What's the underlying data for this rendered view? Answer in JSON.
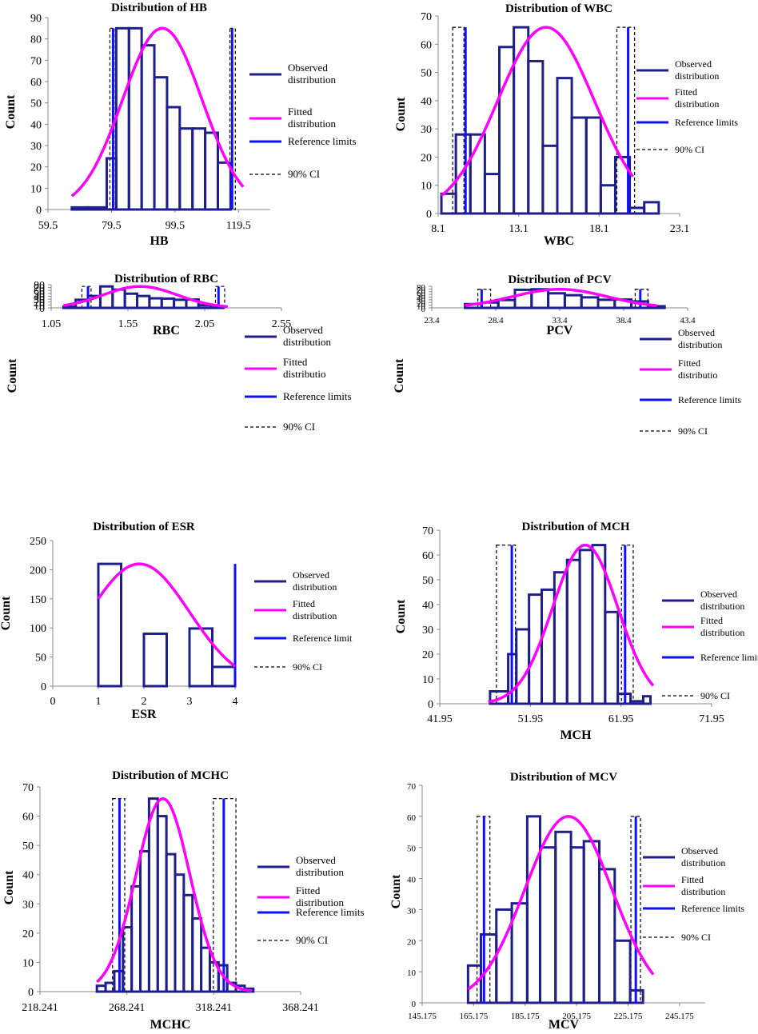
{
  "colors": {
    "observed": "#1f1f8c",
    "fitted": "#ff00ff",
    "reference": "#1010ff",
    "ci": "#000000"
  },
  "chart_data": [
    {
      "type": "bar",
      "title": "Distribution of HB",
      "xlabel": "HB",
      "ylabel": "Count",
      "xlim": [
        59.5,
        129.5
      ],
      "ylim": [
        0,
        90
      ],
      "xticks": [
        "59.5",
        "79.5",
        "99.5",
        "119.5"
      ],
      "xtick_values": [
        59.5,
        79.5,
        99.5,
        119.5
      ],
      "yticks": [
        "0",
        "10",
        "20",
        "30",
        "40",
        "50",
        "60",
        "70",
        "80",
        "90"
      ],
      "bins": [
        [
          67,
          72
        ],
        [
          72,
          78
        ],
        [
          78,
          81
        ],
        [
          81,
          85
        ],
        [
          85,
          89
        ],
        [
          89,
          93
        ],
        [
          93,
          97
        ],
        [
          97,
          101
        ],
        [
          101,
          105
        ],
        [
          105,
          109
        ],
        [
          109,
          113
        ],
        [
          113,
          117
        ],
        [
          117,
          121
        ]
      ],
      "counts": [
        1,
        1,
        24,
        85,
        85,
        77,
        62,
        48,
        38,
        38,
        36,
        22,
        0
      ],
      "fitted": {
        "mean": 95.5,
        "sd": 12.5,
        "peak": 85,
        "from": 67,
        "to": 121
      },
      "reference_limits": [
        80,
        117.5
      ],
      "ci_90": [
        [
          79,
          80.7
        ],
        [
          116.8,
          118.5
        ]
      ],
      "ci_height": 85,
      "legend": [
        "Observed distribution",
        "Fitted distribution",
        "Reference limits",
        "90% CI"
      ]
    },
    {
      "type": "bar",
      "title": "Distribution of WBC",
      "xlabel": "WBC",
      "ylabel": "Count",
      "xlim": [
        8.1,
        23.1
      ],
      "ylim": [
        0,
        70
      ],
      "xticks": [
        "8.1",
        "13.1",
        "18.1",
        "23.1"
      ],
      "xtick_values": [
        8.1,
        13.1,
        18.1,
        23.1
      ],
      "yticks": [
        "0",
        "10",
        "20",
        "30",
        "40",
        "50",
        "60",
        "70"
      ],
      "bins": [
        [
          8.3,
          9.2
        ],
        [
          9.2,
          10.1
        ],
        [
          10.1,
          11.0
        ],
        [
          11.0,
          11.9
        ],
        [
          11.9,
          12.8
        ],
        [
          12.8,
          13.7
        ],
        [
          13.7,
          14.6
        ],
        [
          14.6,
          15.5
        ],
        [
          15.5,
          16.4
        ],
        [
          16.4,
          17.3
        ],
        [
          17.3,
          18.2
        ],
        [
          18.2,
          19.1
        ],
        [
          19.1,
          20.0
        ],
        [
          20.0,
          20.9
        ],
        [
          20.9,
          21.8
        ]
      ],
      "counts": [
        7,
        28,
        28,
        14,
        59,
        66,
        54,
        24,
        48,
        34,
        34,
        10,
        20,
        2,
        4
      ],
      "fitted": {
        "mean": 14.8,
        "sd": 3.0,
        "peak": 66,
        "from": 8.3,
        "to": 20.2
      },
      "reference_limits": [
        9.8,
        19.9
      ],
      "ci_90": [
        [
          9.0,
          9.7
        ],
        [
          19.2,
          20.3
        ]
      ],
      "ci_height": 66,
      "legend": [
        "Observed distribution",
        "Fitted distribution",
        "Reference limits",
        "90% CI"
      ]
    },
    {
      "type": "bar",
      "title": "Distribution of RBC",
      "xlabel": "RBC",
      "ylabel": "Count",
      "xlim": [
        1.05,
        2.55
      ],
      "ylim": [
        0,
        80
      ],
      "xticks": [
        "1.05",
        "1.55",
        "2.05",
        "2.55"
      ],
      "xtick_values": [
        1.05,
        1.55,
        2.05,
        2.55
      ],
      "yticks": [
        "0",
        "10",
        "20",
        "30",
        "40",
        "50",
        "60",
        "70",
        "80"
      ],
      "bins": [
        [
          1.13,
          1.21
        ],
        [
          1.21,
          1.29
        ],
        [
          1.29,
          1.37
        ],
        [
          1.37,
          1.45
        ],
        [
          1.45,
          1.53
        ],
        [
          1.53,
          1.61
        ],
        [
          1.61,
          1.69
        ],
        [
          1.69,
          1.77
        ],
        [
          1.77,
          1.85
        ],
        [
          1.85,
          1.93
        ],
        [
          1.93,
          2.01
        ],
        [
          2.01,
          2.09
        ],
        [
          2.09,
          2.17
        ],
        [
          2.17,
          2.25
        ],
        [
          2.25,
          2.33
        ]
      ],
      "counts": [
        4,
        28,
        41,
        74,
        63,
        49,
        41,
        33,
        32,
        28,
        29,
        9,
        1,
        0,
        0
      ],
      "fitted": {
        "mean": 1.63,
        "sd": 0.24,
        "peak": 74,
        "from": 1.13,
        "to": 2.2
      },
      "reference_limits": [
        1.29,
        2.14
      ],
      "ci_90": [
        [
          1.25,
          1.31
        ],
        [
          2.12,
          2.18
        ]
      ],
      "ci_height": 74,
      "legend": [
        "Observed distribution",
        "Fitted distributio",
        "Reference limits",
        "90% CI"
      ]
    },
    {
      "type": "bar",
      "title": "Distribution of PCV",
      "xlabel": "PCV",
      "ylabel": "Count",
      "xlim": [
        23.4,
        43.4
      ],
      "ylim": [
        0,
        80
      ],
      "xticks": [
        "23.4",
        "28.4",
        "33.4",
        "38.4",
        "43.4"
      ],
      "xtick_values": [
        23.4,
        28.4,
        33.4,
        38.4,
        43.4
      ],
      "yticks": [
        "0",
        "10",
        "20",
        "30",
        "40",
        "50",
        "60",
        "70",
        "80"
      ],
      "bins": [
        [
          26.0,
          27.3
        ],
        [
          27.3,
          28.6
        ],
        [
          28.6,
          29.9
        ],
        [
          29.9,
          31.2
        ],
        [
          31.2,
          32.5
        ],
        [
          32.5,
          33.8
        ],
        [
          33.8,
          35.1
        ],
        [
          35.1,
          36.4
        ],
        [
          36.4,
          37.7
        ],
        [
          37.7,
          39.0
        ],
        [
          39.0,
          40.3
        ],
        [
          40.3,
          41.6
        ]
      ],
      "counts": [
        14,
        20,
        29,
        67,
        69,
        54,
        47,
        39,
        30,
        31,
        24,
        6
      ],
      "fitted": {
        "mean": 33.4,
        "sd": 3.7,
        "peak": 69,
        "from": 26.0,
        "to": 41.0
      },
      "reference_limits": [
        27.3,
        39.7
      ],
      "ci_90": [
        [
          27.0,
          28.0
        ],
        [
          39.3,
          40.3
        ]
      ],
      "ci_height": 69,
      "legend": [
        "Observed distribution",
        "Fitted distributio",
        "Reference limits",
        "90% CI"
      ]
    },
    {
      "type": "bar",
      "title": "Distribution of ESR",
      "xlabel": "ESR",
      "ylabel": "Count",
      "xlim": [
        0,
        4
      ],
      "ylim": [
        0,
        250
      ],
      "xticks": [
        "0",
        "1",
        "2",
        "3",
        "4"
      ],
      "xtick_values": [
        0,
        1,
        2,
        3,
        4
      ],
      "yticks": [
        "0",
        "50",
        "100",
        "150",
        "200",
        "250"
      ],
      "bins": [
        [
          1.0,
          1.5
        ],
        [
          1.5,
          2.0
        ],
        [
          2.0,
          2.5
        ],
        [
          2.5,
          3.0
        ],
        [
          3.0,
          3.5
        ],
        [
          3.5,
          4.0
        ]
      ],
      "counts": [
        210,
        0,
        90,
        0,
        99,
        33
      ],
      "fitted": {
        "mean": 1.9,
        "sd": 1.1,
        "peak": 210,
        "from": 1.0,
        "to": 4.0
      },
      "reference_limits": [
        4.0
      ],
      "reference_height": 210,
      "ci_90": [],
      "ci_height": 0,
      "legend": [
        "Observed distribution",
        "Fitted distribution",
        "Reference limit",
        "90% CI"
      ]
    },
    {
      "type": "bar",
      "title": "Distribution of MCH",
      "xlabel": "MCH",
      "ylabel": "Count",
      "xlim": [
        41.95,
        71.95
      ],
      "ylim": [
        0,
        70
      ],
      "xticks": [
        "41.95",
        "51.95",
        "61.95",
        "71.95"
      ],
      "xtick_values": [
        41.95,
        51.95,
        61.95,
        71.95
      ],
      "yticks": [
        "0",
        "10",
        "20",
        "30",
        "40",
        "50",
        "60",
        "70"
      ],
      "bins": [
        [
          47.5,
          49.5
        ],
        [
          49.5,
          50.4
        ],
        [
          50.4,
          51.8
        ],
        [
          51.8,
          53.2
        ],
        [
          53.2,
          54.6
        ],
        [
          54.6,
          56.0
        ],
        [
          56.0,
          57.4
        ],
        [
          57.4,
          58.8
        ],
        [
          58.8,
          60.2
        ],
        [
          60.2,
          61.6
        ],
        [
          61.6,
          63.0
        ],
        [
          63.0,
          64.4
        ],
        [
          64.4,
          65.2
        ]
      ],
      "counts": [
        5,
        20,
        30,
        44,
        46,
        53,
        58,
        62,
        64,
        37,
        4,
        1,
        3
      ],
      "fitted": {
        "mean": 58.0,
        "sd": 3.6,
        "peak": 64,
        "from": 47.3,
        "to": 65.5
      },
      "reference_limits": [
        49.9,
        62.4
      ],
      "ci_90": [
        [
          48.2,
          50.3
        ],
        [
          62.0,
          63.3
        ]
      ],
      "ci_height": 64,
      "legend": [
        "Observed distribution",
        "Fitted distribution",
        "Reference limits",
        "90% CI"
      ]
    },
    {
      "type": "bar",
      "title": "Distribution of MCHC",
      "xlabel": "MCHC",
      "ylabel": "Count",
      "xlim": [
        218.241,
        368.241
      ],
      "ylim": [
        0,
        70
      ],
      "xticks": [
        "218.241",
        "268.241",
        "318.241",
        "368.241"
      ],
      "xtick_values": [
        218.241,
        268.241,
        318.241,
        368.241
      ],
      "yticks": [
        "0",
        "10",
        "20",
        "30",
        "40",
        "50",
        "60",
        "70"
      ],
      "bins": [
        [
          251,
          256
        ],
        [
          256,
          261
        ],
        [
          261,
          266
        ],
        [
          266,
          271
        ],
        [
          271,
          276
        ],
        [
          276,
          281
        ],
        [
          281,
          286
        ],
        [
          286,
          291
        ],
        [
          291,
          296
        ],
        [
          296,
          301
        ],
        [
          301,
          306
        ],
        [
          306,
          311
        ],
        [
          311,
          316
        ],
        [
          316,
          321
        ],
        [
          321,
          326
        ],
        [
          326,
          331
        ],
        [
          331,
          336
        ],
        [
          336,
          341
        ]
      ],
      "counts": [
        2,
        3,
        7,
        22,
        36,
        48,
        66,
        60,
        47,
        40,
        33,
        25,
        15,
        10,
        9,
        3,
        2,
        1
      ],
      "fitted": {
        "mean": 289,
        "sd": 15.5,
        "peak": 66,
        "from": 251,
        "to": 340
      },
      "reference_limits": [
        264,
        324
      ],
      "ci_90": [
        [
          260,
          267
        ],
        [
          318,
          331
        ]
      ],
      "ci_height": 66,
      "legend": [
        "Observed distribution",
        "Fitted distribution",
        "Reference limits",
        "90% CI"
      ]
    },
    {
      "type": "bar",
      "title": "Distribution of MCV",
      "xlabel": "MCV",
      "ylabel": "Count",
      "xlim": [
        145.175,
        255.175
      ],
      "ylim": [
        0,
        70
      ],
      "xticks": [
        "145.175",
        "165.175",
        "185.175",
        "205.175",
        "225.175",
        "245.175"
      ],
      "xtick_values": [
        145.175,
        165.175,
        185.175,
        205.175,
        225.175,
        245.175
      ],
      "yticks": [
        "0",
        "10",
        "20",
        "30",
        "40",
        "50",
        "60",
        "70"
      ],
      "bins": [
        [
          163,
          168
        ],
        [
          168,
          174
        ],
        [
          174,
          180
        ],
        [
          180,
          186
        ],
        [
          186,
          191
        ],
        [
          191,
          197
        ],
        [
          197,
          203
        ],
        [
          203,
          208
        ],
        [
          208,
          214
        ],
        [
          214,
          220
        ],
        [
          220,
          226
        ],
        [
          226,
          231
        ],
        [
          231,
          236
        ]
      ],
      "counts": [
        12,
        22,
        30,
        32,
        60,
        50,
        55,
        50,
        52,
        43,
        20,
        4,
        0
      ],
      "fitted": {
        "mean": 202,
        "sd": 17,
        "peak": 60,
        "from": 163,
        "to": 235
      },
      "reference_limits": [
        169.2,
        228.2
      ],
      "ci_90": [
        [
          166.5,
          171.5
        ],
        [
          226.3,
          230.0
        ]
      ],
      "ci_height": 60,
      "legend": [
        "Observed distribution",
        "Fitted distribution",
        "Reference limits",
        "90% CI"
      ]
    }
  ]
}
